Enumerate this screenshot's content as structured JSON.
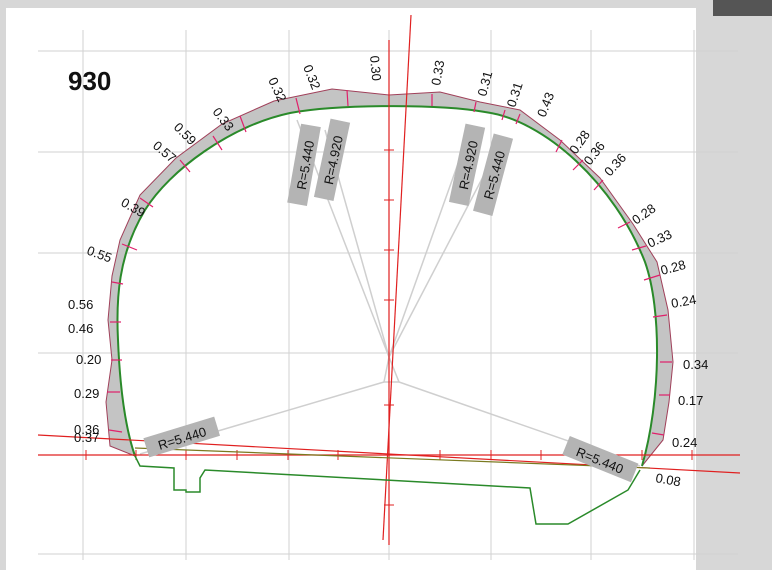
{
  "section_number": "930",
  "radius_labels": [
    "R=5.440",
    "R=4.920",
    "R=4.920",
    "R=5.440",
    "R=5.440",
    "R=5.440"
  ],
  "overbreak_labels": [
    "0.37",
    "0.36",
    "0.29",
    "0.20",
    "0.46",
    "0.56",
    "0.55",
    "0.39",
    "0.57",
    "0.59",
    "0.33",
    "0.32",
    "0.32",
    "0.30",
    "0.33",
    "0.31",
    "0.31",
    "0.43",
    "0.28",
    "0.36",
    "0.36",
    "0.28",
    "0.33",
    "0.28",
    "0.24",
    "0.34",
    "0.17",
    "0.24",
    "0.08"
  ],
  "colors": {
    "design_profile": "#2a8a2a",
    "axis_lines": "#e02020",
    "tick_marks": "#e0206a",
    "overbreak_fill": "#c4c4c4",
    "overbreak_outline": "#a0405a",
    "radius_lines": "#cfcfcf",
    "grid": "#cfcfcf",
    "label_box": "#b4b4b4"
  }
}
